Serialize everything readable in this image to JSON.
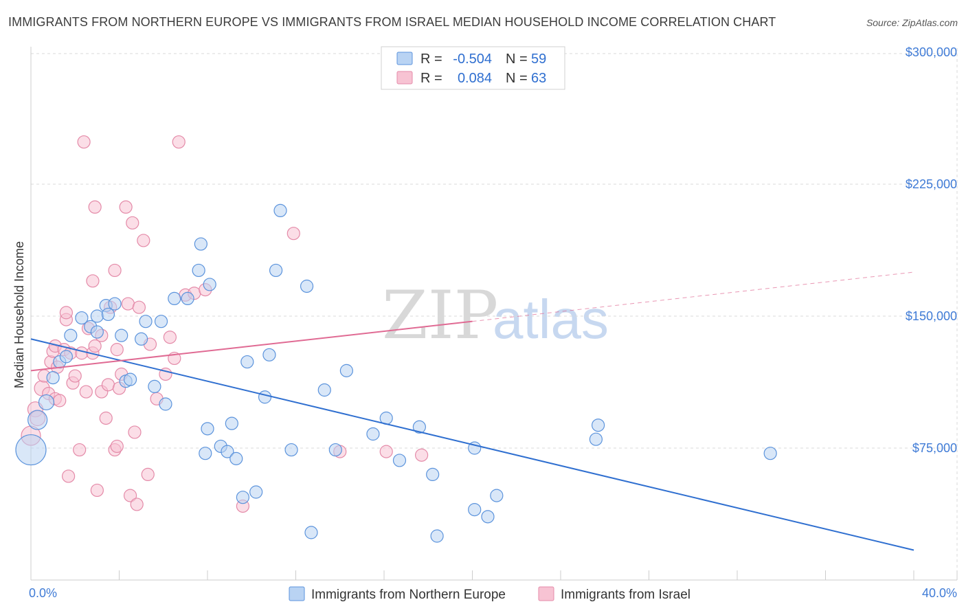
{
  "header": {
    "title": "IMMIGRANTS FROM NORTHERN EUROPE VS IMMIGRANTS FROM ISRAEL MEDIAN HOUSEHOLD INCOME CORRELATION CHART",
    "source": "Source: ZipAtlas.com"
  },
  "watermark": {
    "zip": "ZIP",
    "atlas": "atlas"
  },
  "colors": {
    "blue_fill": "#b9d3f3",
    "blue_stroke": "#5b93dc",
    "blue_line": "#2f6fd0",
    "pink_fill": "#f7c3d3",
    "pink_stroke": "#e48aa8",
    "pink_line": "#e06a93",
    "grid": "#d9d9d9",
    "axis_label": "#3f7bd6"
  },
  "legend": {
    "rows": [
      {
        "r_label": "R =",
        "r_value": "-0.504",
        "n_label": "N =",
        "n_value": "59"
      },
      {
        "r_label": "R =",
        "r_value": "0.084",
        "n_label": "N =",
        "n_value": "63"
      }
    ]
  },
  "chart_data": {
    "type": "scatter",
    "title": "IMMIGRANTS FROM NORTHERN EUROPE VS IMMIGRANTS FROM ISRAEL MEDIAN HOUSEHOLD INCOME CORRELATION CHART",
    "xlabel": "",
    "ylabel": "Median Household Income",
    "xlim": [
      0,
      40
    ],
    "ylim": [
      0,
      310000
    ],
    "x_tick_labels": [
      "0.0%",
      "40.0%"
    ],
    "y_ticks": [
      75000,
      150000,
      225000,
      300000
    ],
    "y_tick_labels": [
      "$75,000",
      "$150,000",
      "$225,000",
      "$300,000"
    ],
    "grid": true,
    "series": [
      {
        "name": "Immigrants from Northern Europe",
        "r": -0.504,
        "n": 59,
        "trend": {
          "x0": 0,
          "y0": 137000,
          "x1": 40,
          "y1": 17000,
          "solid_to": 40
        },
        "points": [
          [
            0.0,
            74000,
            22
          ],
          [
            0.3,
            91000,
            14
          ],
          [
            0.7,
            101000,
            11
          ],
          [
            1.0,
            115000,
            9
          ],
          [
            1.3,
            124000,
            9
          ],
          [
            1.6,
            127000,
            9
          ],
          [
            1.8,
            139000,
            9
          ],
          [
            2.3,
            149000,
            9
          ],
          [
            2.7,
            144000,
            9
          ],
          [
            3.0,
            141000,
            9
          ],
          [
            3.0,
            150000,
            9
          ],
          [
            3.4,
            156000,
            9
          ],
          [
            3.5,
            151000,
            9
          ],
          [
            3.8,
            157000,
            9
          ],
          [
            4.1,
            139000,
            9
          ],
          [
            4.3,
            113000,
            9
          ],
          [
            4.5,
            114000,
            9
          ],
          [
            5.0,
            137000,
            9
          ],
          [
            5.2,
            147000,
            9
          ],
          [
            5.6,
            110000,
            9
          ],
          [
            5.9,
            147000,
            9
          ],
          [
            6.1,
            100000,
            9
          ],
          [
            6.5,
            160000,
            9
          ],
          [
            7.1,
            160000,
            9
          ],
          [
            7.6,
            176000,
            9
          ],
          [
            7.7,
            191000,
            9
          ],
          [
            7.9,
            72000,
            9
          ],
          [
            8.0,
            86000,
            9
          ],
          [
            8.1,
            168000,
            9
          ],
          [
            8.6,
            76000,
            9
          ],
          [
            8.9,
            73000,
            9
          ],
          [
            9.1,
            89000,
            9
          ],
          [
            9.3,
            69000,
            9
          ],
          [
            9.6,
            47000,
            9
          ],
          [
            9.8,
            124000,
            9
          ],
          [
            10.2,
            50000,
            9
          ],
          [
            10.6,
            104000,
            9
          ],
          [
            10.8,
            128000,
            9
          ],
          [
            11.1,
            176000,
            9
          ],
          [
            11.3,
            210000,
            9
          ],
          [
            11.8,
            74000,
            9
          ],
          [
            12.5,
            167000,
            9
          ],
          [
            12.7,
            27000,
            9
          ],
          [
            13.3,
            108000,
            9
          ],
          [
            13.8,
            74000,
            9
          ],
          [
            14.3,
            119000,
            9
          ],
          [
            15.5,
            83000,
            9
          ],
          [
            16.1,
            92000,
            9
          ],
          [
            16.7,
            68000,
            9
          ],
          [
            17.6,
            87000,
            9
          ],
          [
            18.2,
            60000,
            9
          ],
          [
            18.4,
            25000,
            9
          ],
          [
            20.1,
            40000,
            9
          ],
          [
            20.1,
            75000,
            9
          ],
          [
            20.7,
            36000,
            9
          ],
          [
            21.1,
            48000,
            9
          ],
          [
            25.6,
            80000,
            9
          ],
          [
            25.7,
            88000,
            9
          ],
          [
            33.5,
            72000,
            9
          ]
        ]
      },
      {
        "name": "Immigrants from Israel",
        "r": 0.084,
        "n": 63,
        "trend": {
          "x0": 0,
          "y0": 119000,
          "x1": 40,
          "y1": 175000,
          "solid_to": 20
        },
        "points": [
          [
            0.0,
            82000,
            14
          ],
          [
            0.2,
            97000,
            11
          ],
          [
            0.3,
            92000,
            11
          ],
          [
            0.5,
            109000,
            11
          ],
          [
            0.6,
            116000,
            9
          ],
          [
            0.8,
            106000,
            9
          ],
          [
            0.9,
            124000,
            9
          ],
          [
            1.0,
            130000,
            9
          ],
          [
            1.1,
            133000,
            9
          ],
          [
            1.1,
            103000,
            9
          ],
          [
            1.2,
            121000,
            9
          ],
          [
            1.3,
            102000,
            9
          ],
          [
            1.5,
            131000,
            9
          ],
          [
            1.6,
            148000,
            9
          ],
          [
            1.6,
            152000,
            9
          ],
          [
            1.7,
            59000,
            9
          ],
          [
            1.8,
            129000,
            9
          ],
          [
            1.9,
            112000,
            9
          ],
          [
            2.0,
            116000,
            9
          ],
          [
            2.2,
            74000,
            9
          ],
          [
            2.3,
            129000,
            9
          ],
          [
            2.4,
            249000,
            9
          ],
          [
            2.5,
            107000,
            9
          ],
          [
            2.6,
            143000,
            9
          ],
          [
            2.8,
            170000,
            9
          ],
          [
            2.8,
            129000,
            9
          ],
          [
            2.9,
            212000,
            9
          ],
          [
            2.9,
            133000,
            9
          ],
          [
            3.0,
            51000,
            9
          ],
          [
            3.2,
            139000,
            9
          ],
          [
            3.2,
            107000,
            9
          ],
          [
            3.4,
            92000,
            9
          ],
          [
            3.5,
            111000,
            9
          ],
          [
            3.6,
            155000,
            9
          ],
          [
            3.8,
            176000,
            9
          ],
          [
            3.8,
            74000,
            9
          ],
          [
            3.9,
            131000,
            9
          ],
          [
            3.9,
            76000,
            9
          ],
          [
            4.0,
            109000,
            9
          ],
          [
            4.1,
            117000,
            9
          ],
          [
            4.3,
            212000,
            9
          ],
          [
            4.4,
            157000,
            9
          ],
          [
            4.5,
            48000,
            9
          ],
          [
            4.6,
            203000,
            9
          ],
          [
            4.7,
            84000,
            9
          ],
          [
            4.8,
            43000,
            9
          ],
          [
            4.9,
            155000,
            9
          ],
          [
            5.1,
            193000,
            9
          ],
          [
            5.3,
            60000,
            9
          ],
          [
            5.4,
            134000,
            9
          ],
          [
            5.7,
            103000,
            9
          ],
          [
            6.1,
            117000,
            9
          ],
          [
            6.3,
            138000,
            9
          ],
          [
            6.5,
            126000,
            9
          ],
          [
            6.7,
            249000,
            9
          ],
          [
            7.0,
            162000,
            9
          ],
          [
            7.4,
            163000,
            9
          ],
          [
            7.9,
            165000,
            9
          ],
          [
            9.6,
            42000,
            9
          ],
          [
            11.9,
            197000,
            9
          ],
          [
            14.0,
            73000,
            9
          ],
          [
            16.1,
            73000,
            9
          ],
          [
            17.7,
            71000,
            9
          ]
        ]
      }
    ]
  }
}
